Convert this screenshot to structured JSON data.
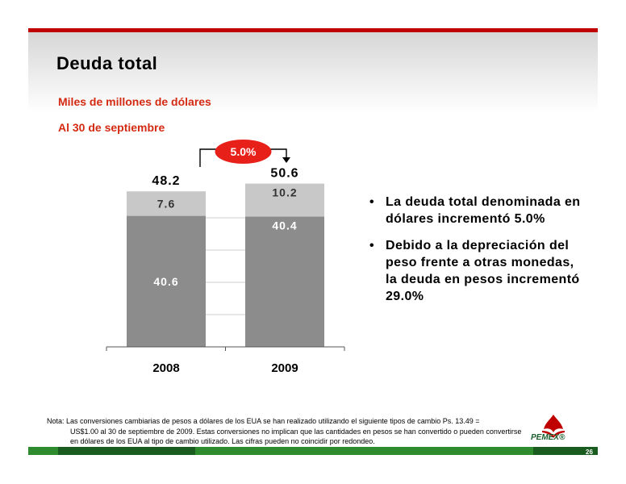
{
  "title": "Deuda total",
  "subtitle1": "Miles de millones de dólares",
  "subtitle2": "Al 30 de septiembre",
  "chart_data": {
    "type": "bar",
    "stacked": true,
    "categories": [
      "2008",
      "2009"
    ],
    "series": [
      {
        "values": [
          40.6,
          40.4
        ],
        "color": "#8c8c8c"
      },
      {
        "values": [
          7.6,
          10.2
        ],
        "color": "#c8c8c8"
      }
    ],
    "totals": [
      48.2,
      50.6
    ],
    "change_label": "5.0%",
    "ylim": [
      0,
      60
    ]
  },
  "bullets": [
    "La deuda total denominada en dólares incrementó 5.0%",
    "Debido a la depreciación del peso frente a otras monedas, la deuda en pesos incrementó 29.0%"
  ],
  "note_line1": "Nota: Las conversiones cambiarias de pesos a dólares de los EUA se han realizado utilizando el siguiente tipos de cambio Ps. 13.49 =",
  "note_line2": "US$1.00 al 30 de septiembre de 2009. Estas conversiones no implican que las cantidades en pesos se han convertido o pueden convertirse en dólares de los EUA al tipo de cambio utilizado. Las cifras pueden no coincidir por redondeo.",
  "logo_text": "PEMEX®",
  "page_number": "26",
  "colors": {
    "accent_red": "#c00000",
    "subtitle": "#d42a12",
    "bottom_green": "#2e8b2e"
  }
}
